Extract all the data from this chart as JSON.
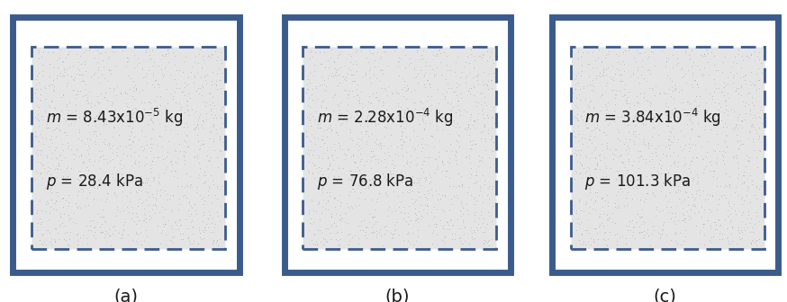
{
  "panels": [
    {
      "label": "(a)",
      "mass_coef": "8.43",
      "mass_exp": "-5",
      "pressure": "28.4"
    },
    {
      "label": "(b)",
      "mass_coef": "2.28",
      "mass_exp": "-4",
      "pressure": "76.8"
    },
    {
      "label": "(c)",
      "mass_coef": "3.84",
      "mass_exp": "-4",
      "pressure": "101.3"
    }
  ],
  "outer_box_color": "#3b5b8c",
  "inner_box_color": "#3b5b8c",
  "fill_color": "#e4e4e4",
  "bg_color": "#ffffff",
  "text_color": "#1a1a1a",
  "label_fontsize": 14,
  "text_fontsize": 12,
  "outer_lw": 5,
  "inner_lw": 2.0
}
